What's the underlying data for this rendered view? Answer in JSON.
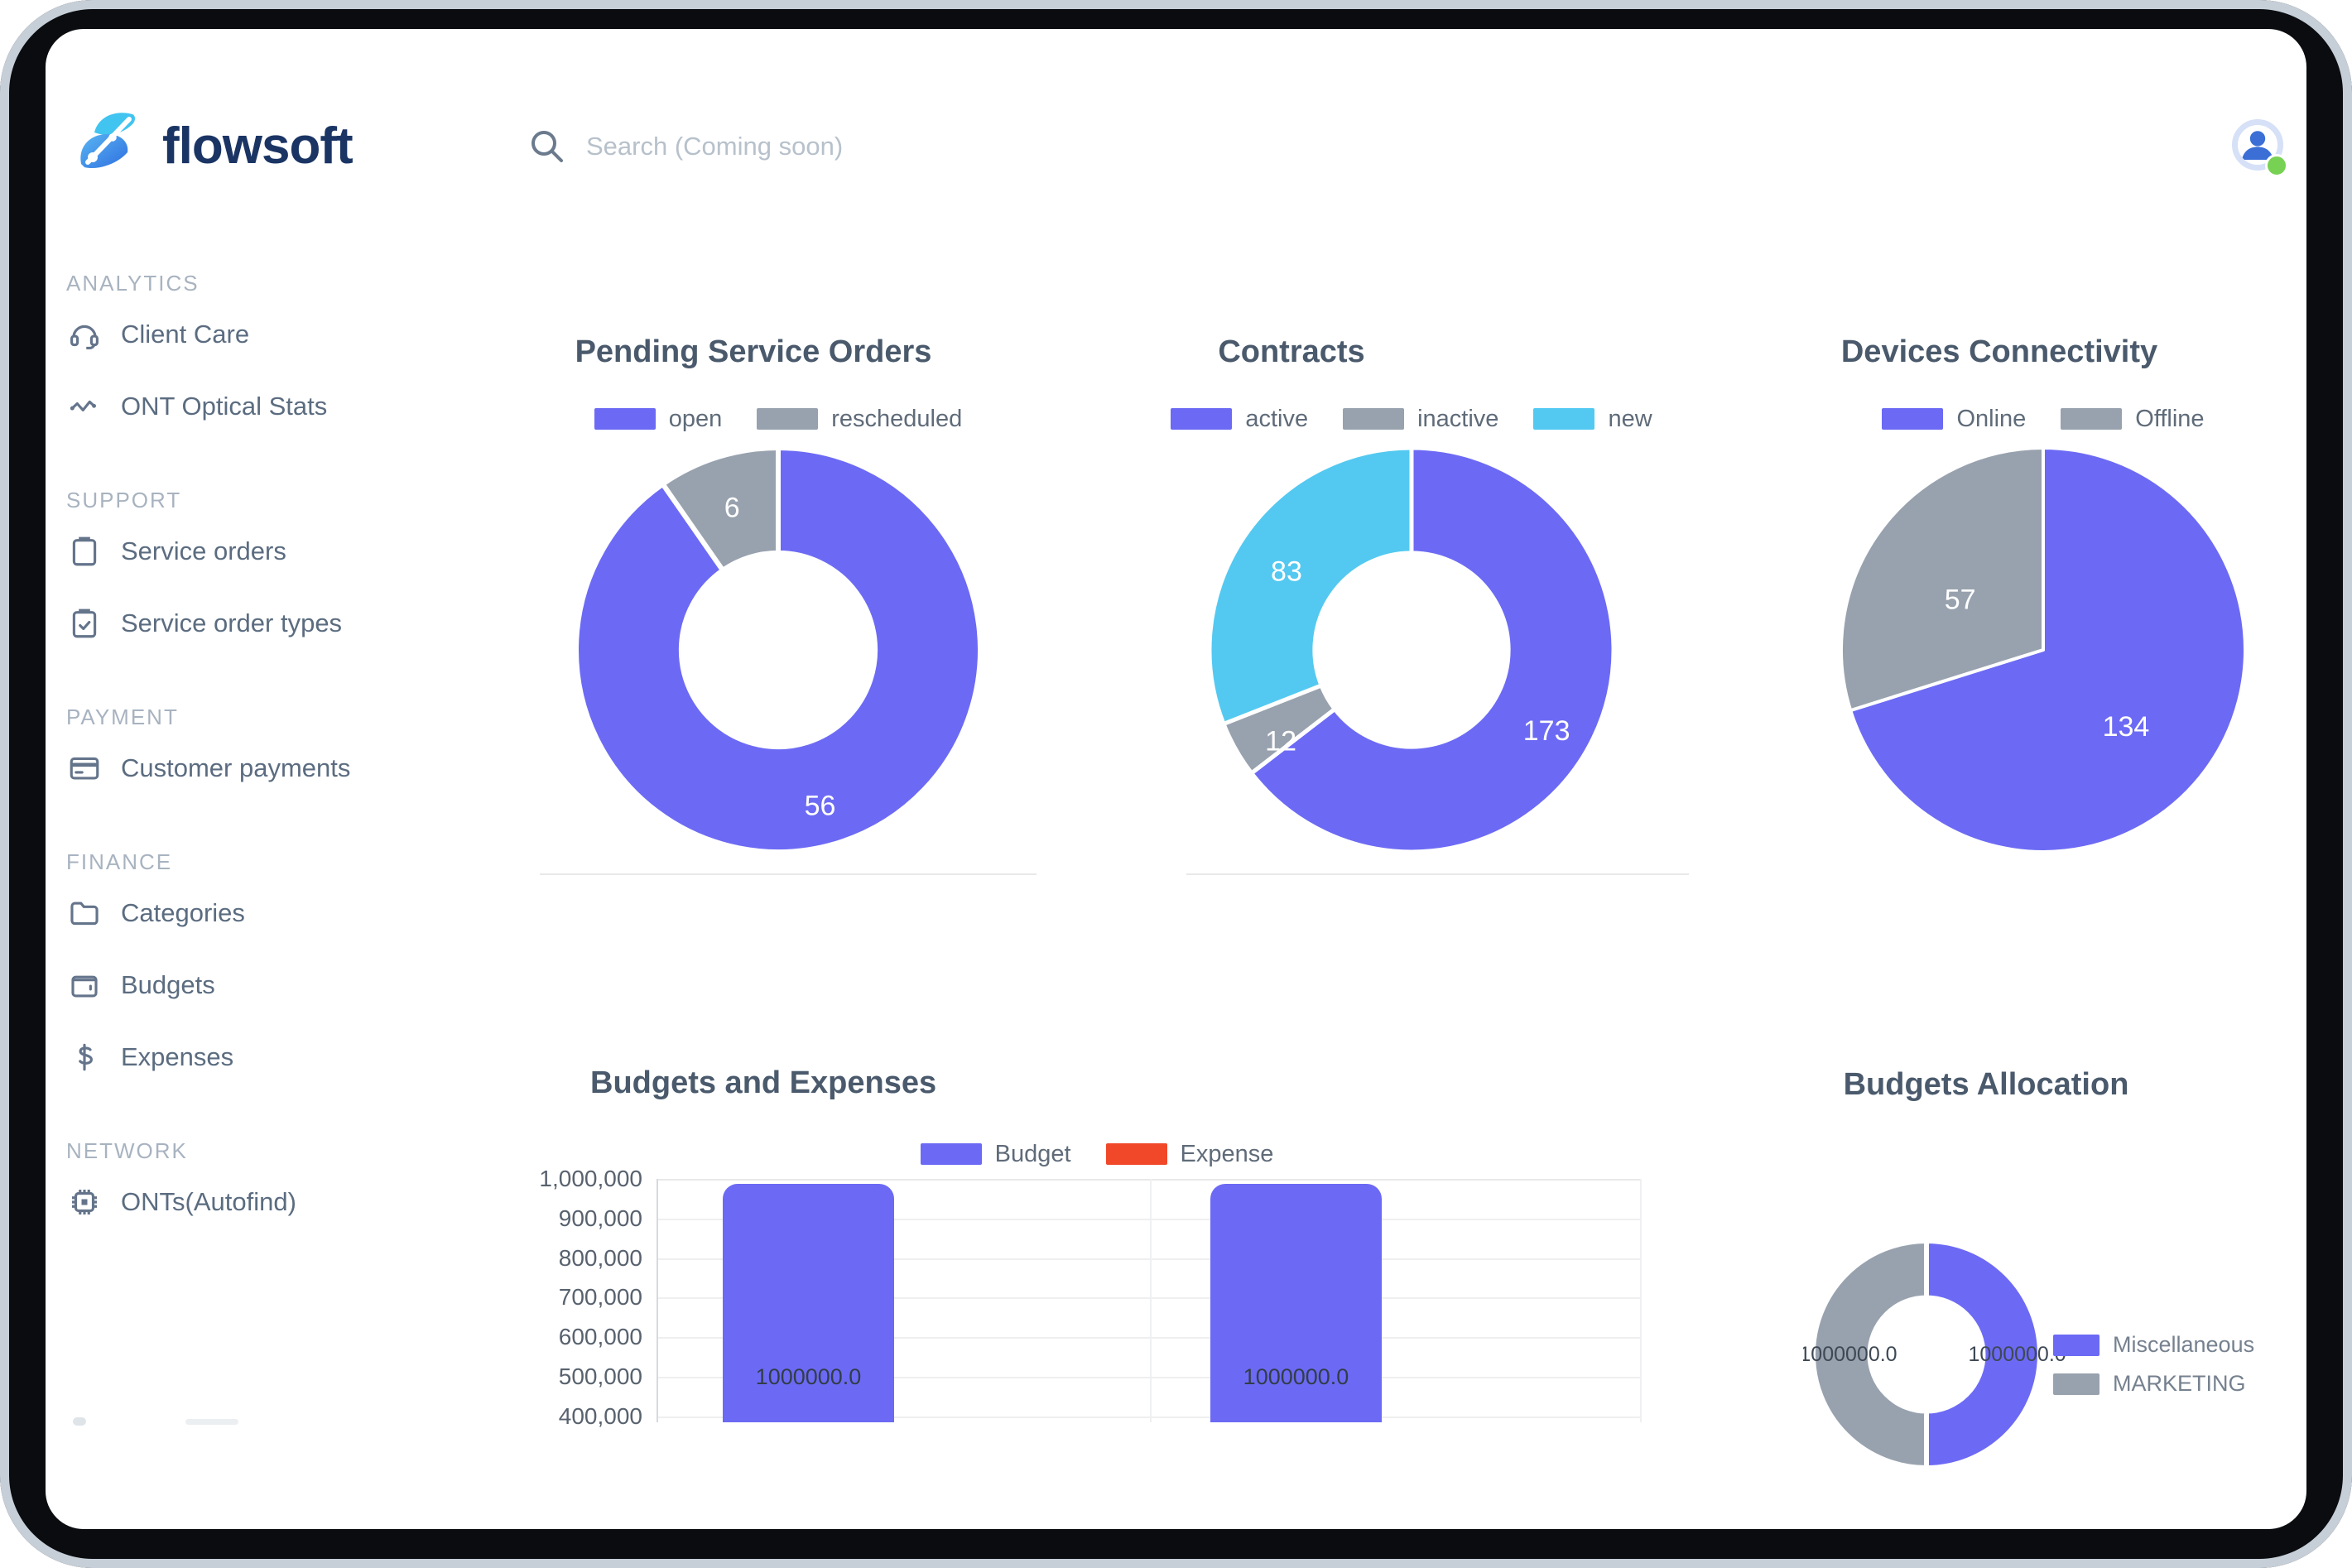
{
  "brand": {
    "logo_text": "flowsoft"
  },
  "header": {
    "search_placeholder": "Search (Coming soon)"
  },
  "sidebar": {
    "sections": [
      {
        "label": "ANALYTICS",
        "items": [
          {
            "label": "Client Care",
            "icon": "headset-icon"
          },
          {
            "label": "ONT Optical Stats",
            "icon": "waveform-icon"
          }
        ]
      },
      {
        "label": "SUPPORT",
        "items": [
          {
            "label": "Service orders",
            "icon": "clipboard-icon"
          },
          {
            "label": "Service order types",
            "icon": "clipboard-check-icon"
          }
        ]
      },
      {
        "label": "PAYMENT",
        "items": [
          {
            "label": "Customer payments",
            "icon": "credit-card-icon"
          }
        ]
      },
      {
        "label": "FINANCE",
        "items": [
          {
            "label": "Categories",
            "icon": "folder-icon"
          },
          {
            "label": "Budgets",
            "icon": "wallet-icon"
          },
          {
            "label": "Expenses",
            "icon": "dollar-icon"
          }
        ]
      },
      {
        "label": "NETWORK",
        "items": [
          {
            "label": "ONTs(Autofind)",
            "icon": "chip-icon"
          }
        ]
      }
    ]
  },
  "colors": {
    "purple": "#6C6AF4",
    "gray": "#98A2AE",
    "cyan": "#53C9F1",
    "red": "#F1482A"
  },
  "chart_data": [
    {
      "type": "donut",
      "title": "Pending Service Orders",
      "hole_ratio": 0.48,
      "legend": [
        {
          "label": "open",
          "color": "#6C6AF4"
        },
        {
          "label": "rescheduled",
          "color": "#98A2AE"
        }
      ],
      "slices": [
        {
          "label": "open",
          "value": 56,
          "color": "#6C6AF4",
          "value_label": "56",
          "label_angle": 165,
          "label_rf": 0.8,
          "value_label_color": "#ffffff"
        },
        {
          "label": "rescheduled",
          "value": 6,
          "color": "#98A2AE",
          "value_label": "6",
          "label_angle": 342,
          "label_rf": 0.74,
          "value_label_color": "#ffffff"
        }
      ]
    },
    {
      "type": "donut",
      "title": "Contracts",
      "hole_ratio": 0.48,
      "legend": [
        {
          "label": "active",
          "color": "#6C6AF4"
        },
        {
          "label": "inactive",
          "color": "#98A2AE"
        },
        {
          "label": "new",
          "color": "#53C9F1"
        }
      ],
      "slices": [
        {
          "label": "active",
          "value": 173,
          "color": "#6C6AF4",
          "value_label": "173",
          "label_angle": 121,
          "label_rf": 0.78,
          "value_label_color": "#ffffff"
        },
        {
          "label": "inactive",
          "value": 12,
          "color": "#98A2AE",
          "value_label": "12",
          "label_angle": 235,
          "label_rf": 0.79,
          "value_label_color": "#ffffff"
        },
        {
          "label": "new",
          "value": 83,
          "color": "#53C9F1",
          "value_label": "83",
          "label_angle": 302,
          "label_rf": 0.73,
          "value_label_color": "#ffffff"
        }
      ]
    },
    {
      "type": "pie",
      "title": "Devices Connectivity",
      "hole_ratio": 0,
      "legend": [
        {
          "label": "Online",
          "color": "#6C6AF4"
        },
        {
          "label": "Offline",
          "color": "#98A2AE"
        }
      ],
      "slices": [
        {
          "label": "Online",
          "value": 134,
          "color": "#6C6AF4",
          "value_label": "134",
          "label_angle": 133,
          "label_rf": 0.56,
          "value_label_color": "#ffffff"
        },
        {
          "label": "Offline",
          "value": 57,
          "color": "#98A2AE",
          "value_label": "57",
          "label_angle": 301,
          "label_rf": 0.48,
          "value_label_color": "#ffffff"
        }
      ]
    },
    {
      "type": "bar",
      "title": "Budgets and Expenses",
      "legend": [
        {
          "label": "Budget",
          "color": "#6C6AF4"
        },
        {
          "label": "Expense",
          "color": "#F1482A"
        }
      ],
      "categories": [
        "",
        ""
      ],
      "series": [
        {
          "name": "Budget",
          "values": [
            1000000,
            1000000
          ]
        },
        {
          "name": "Expense",
          "values": [
            0,
            0
          ]
        }
      ],
      "y_ticks": [
        "1,000,000",
        "900,000",
        "800,000",
        "700,000",
        "600,000",
        "500,000",
        "400,000"
      ],
      "ylim_visible": [
        400000,
        1000000
      ],
      "grid": true,
      "legend_position": "top",
      "bars": [
        {
          "value_label": "1000000.0",
          "color": "#6C6AF4"
        },
        {
          "value_label": "1000000.0",
          "color": "#6C6AF4"
        }
      ]
    },
    {
      "type": "donut",
      "title": "Budgets Allocation",
      "hole_ratio": 0.5,
      "legend_position": "right",
      "legend": [
        {
          "label": "Miscellaneous",
          "color": "#6C6AF4"
        },
        {
          "label": "MARKETING",
          "color": "#98A2AE"
        }
      ],
      "slices": [
        {
          "label": "Miscellaneous",
          "value": 1000000,
          "color": "#6C6AF4",
          "value_label": "1000000.0",
          "label_angle": 90,
          "label_rf": 0.8,
          "value_label_color": "#3E4854"
        },
        {
          "label": "MARKETING",
          "value": 1000000,
          "color": "#98A2AE",
          "value_label": "1000000.0",
          "label_angle": 270,
          "label_rf": 0.69,
          "value_label_color": "#3E4854"
        }
      ]
    }
  ]
}
